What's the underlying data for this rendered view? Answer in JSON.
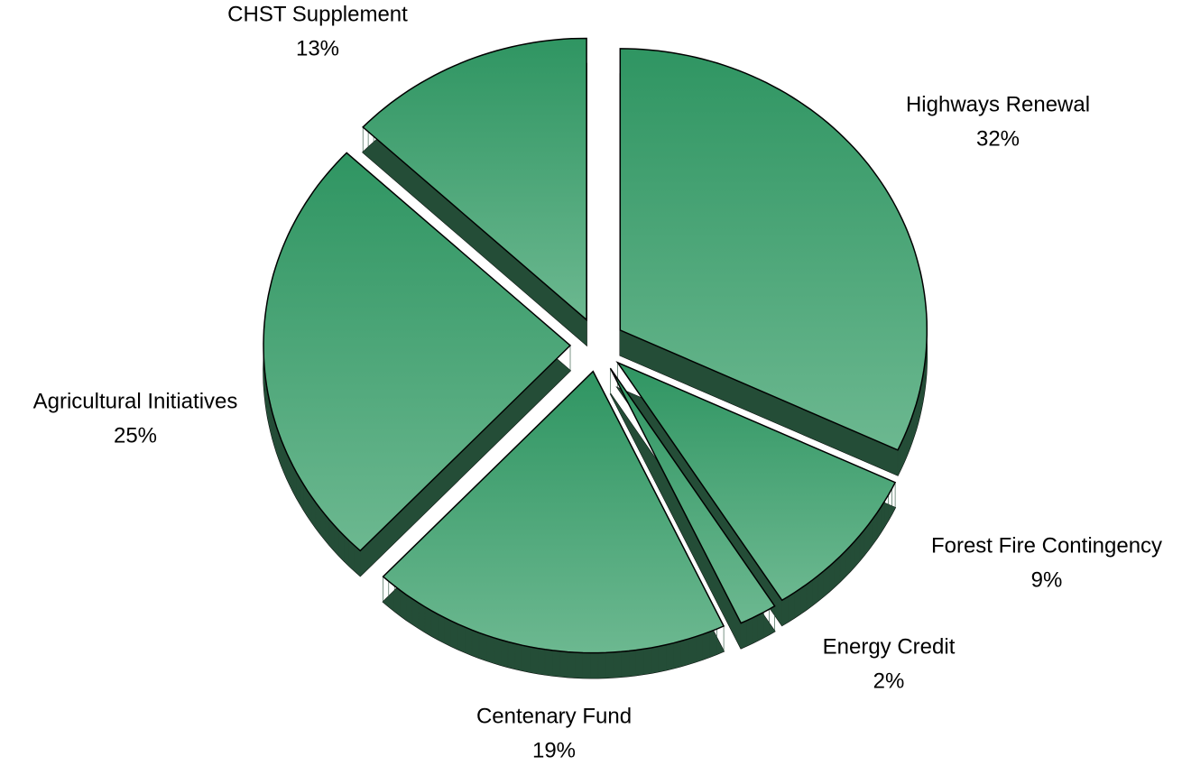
{
  "chart_data": {
    "type": "pie",
    "categories": [
      "Highways Renewal",
      "Forest Fire Contingency",
      "Energy Credit",
      "Centenary Fund",
      "Agricultural Initiatives",
      "CHST Supplement"
    ],
    "values": [
      32,
      9,
      2,
      19,
      25,
      13
    ],
    "value_labels": [
      "32%",
      "9%",
      "2%",
      "19%",
      "25%",
      "13%"
    ],
    "color": "#2f9562"
  }
}
